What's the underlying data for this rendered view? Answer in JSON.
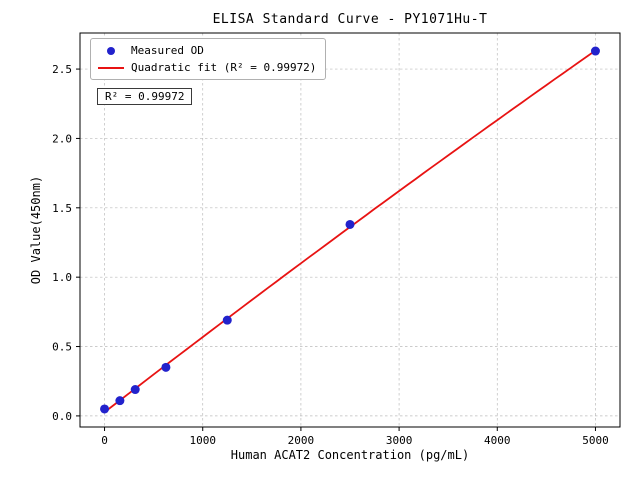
{
  "chart_data": {
    "type": "scatter",
    "title": "ELISA Standard Curve - PY1071Hu-T",
    "xlabel": "Human ACAT2 Concentration (pg/mL)",
    "ylabel": "OD Value(450nm)",
    "series": [
      {
        "name": "Measured OD",
        "type": "scatter",
        "x": [
          0,
          156.25,
          312.5,
          625,
          1250,
          2500,
          5000
        ],
        "y": [
          0.05,
          0.11,
          0.19,
          0.35,
          0.69,
          1.38,
          2.63
        ]
      },
      {
        "name": "Quadratic fit (R² = 0.99972)",
        "type": "quadratic-fit-line",
        "fit_of_series": "Measured OD",
        "r_squared": 0.99972
      }
    ],
    "legend": {
      "position": "upper left",
      "entries": [
        "Measured OD",
        "Quadratic fit (R² = 0.99972)"
      ]
    },
    "annotation": "R² = 0.99972",
    "xlim": [
      -250,
      5250
    ],
    "ylim": [
      -0.08,
      2.76
    ],
    "xticks": [
      0,
      1000,
      2000,
      3000,
      4000,
      5000
    ],
    "xtick_labels": [
      "0",
      "1000",
      "2000",
      "3000",
      "4000",
      "5000"
    ],
    "yticks": [
      0,
      0.5,
      1.0,
      1.5,
      2.0,
      2.5
    ],
    "ytick_labels": [
      "0.0",
      "0.5",
      "1.0",
      "1.5",
      "2.0",
      "2.5"
    ],
    "grid": true,
    "colors": {
      "points": "#2222cc",
      "fit_line": "#e81313",
      "grid": "#bbbbbb",
      "axes": "#000000",
      "background": "#ffffff"
    }
  }
}
